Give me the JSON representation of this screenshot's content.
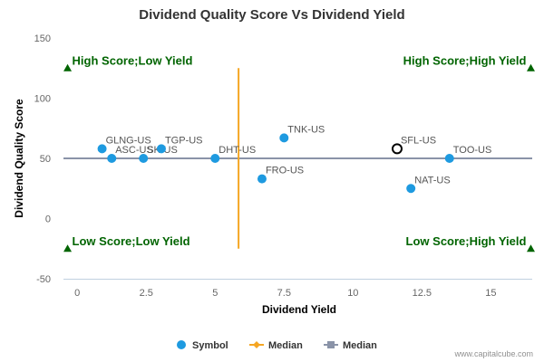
{
  "chart_data": {
    "type": "scatter",
    "title": "Dividend Quality Score Vs Dividend Yield",
    "xlabel": "Dividend Yield",
    "ylabel": "Dividend Quality Score",
    "xlim": [
      -0.5,
      16.5
    ],
    "ylim": [
      -50,
      150
    ],
    "xticks": [
      "0",
      "2.5",
      "5",
      "7.5",
      "10",
      "12.5",
      "15"
    ],
    "xtick_values": [
      0,
      2.5,
      5,
      7.5,
      10,
      12.5,
      15
    ],
    "yticks": [
      "-50",
      "0",
      "50",
      "100",
      "150"
    ],
    "ytick_values": [
      -50,
      0,
      50,
      100,
      150
    ],
    "grid": false,
    "series": [
      {
        "name": "Symbol",
        "color": "#1e9ae0",
        "points": [
          {
            "label": "GLNG-US",
            "x": 0.9,
            "y": 58
          },
          {
            "label": "ASC-US",
            "x": 1.25,
            "y": 50
          },
          {
            "label": "SK-US",
            "x": 2.4,
            "y": 50
          },
          {
            "label": "TGP-US",
            "x": 3.05,
            "y": 58
          },
          {
            "label": "DHT-US",
            "x": 5.0,
            "y": 50
          },
          {
            "label": "TNK-US",
            "x": 7.5,
            "y": 67
          },
          {
            "label": "FRO-US",
            "x": 6.7,
            "y": 33
          },
          {
            "label": "TOO-US",
            "x": 13.5,
            "y": 50
          },
          {
            "label": "NAT-US",
            "x": 12.1,
            "y": 25
          }
        ]
      }
    ],
    "highlight": {
      "label": "SFL-US",
      "x": 11.6,
      "y": 58
    },
    "median_x": {
      "name": "Median",
      "value": 5.85,
      "y_range": [
        -25,
        125
      ],
      "color": "#f5a623"
    },
    "median_y": {
      "name": "Median",
      "value": 50,
      "color": "#8a93a8"
    },
    "quadrants": {
      "top_left": "High Score;Low Yield",
      "top_right": "High Score;High Yield",
      "bottom_left": "Low Score;Low Yield",
      "bottom_right": "Low Score;High Yield"
    },
    "quadrant_marker_color": "#006400",
    "legend": [
      "Symbol",
      "Median",
      "Median"
    ],
    "legend_position": "bottom-center"
  },
  "credit": "www.capitalcube.com"
}
